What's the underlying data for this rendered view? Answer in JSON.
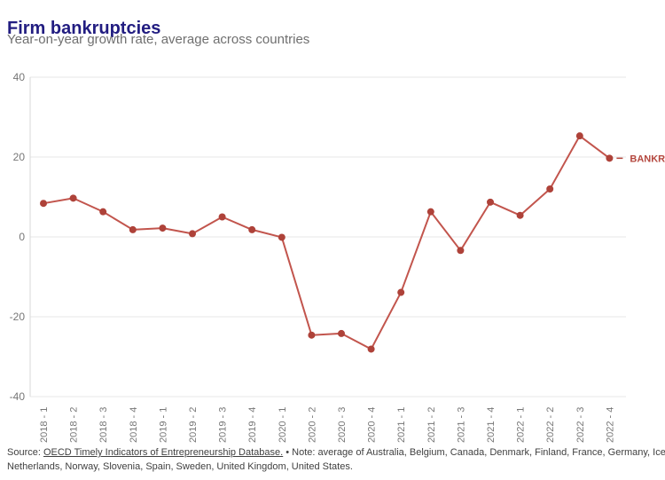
{
  "header": {
    "title": "Firm bankruptcies",
    "subtitle": "Year-on-year growth rate, average across countries"
  },
  "chart_data": {
    "type": "line",
    "title": "Firm bankruptcies",
    "subtitle": "Year-on-year growth rate, average across countries",
    "series_label": "BANKRUPTCIES",
    "categories": [
      "2018 - 1",
      "2018 - 2",
      "2018 - 3",
      "2018 - 4",
      "2019 - 1",
      "2019 - 2",
      "2019 - 3",
      "2019 - 4",
      "2020 - 1",
      "2020 - 2",
      "2020 - 3",
      "2020 - 4",
      "2021 - 1",
      "2021 - 2",
      "2021 - 3",
      "2021 - 4",
      "2022 - 1",
      "2022 - 2",
      "2022 - 3",
      "2022 - 4"
    ],
    "values": [
      8.4,
      9.7,
      6.3,
      1.8,
      2.2,
      0.8,
      5.0,
      1.8,
      -0.1,
      -24.6,
      -24.2,
      -28.1,
      -13.9,
      6.3,
      -3.4,
      8.7,
      5.4,
      12.0,
      25.3,
      19.7
    ],
    "y_ticks": [
      40,
      20,
      0,
      -20,
      -40
    ],
    "ylim": [
      -40,
      40
    ],
    "xlabel": "",
    "ylabel": "",
    "grid": true,
    "legend_position": "end-of-line"
  },
  "colors": {
    "title": "#221d81",
    "subtitle": "#6f6f6f",
    "line": "#c2554d",
    "point": "#ae4239",
    "grid": "#e7e7e7",
    "axis": "#d9d9d9",
    "tick_label": "#767676",
    "footer_text": "#3f3f3f",
    "series_label": "#b4473e"
  },
  "footer": {
    "source_prefix": "Source: ",
    "source_link": "OECD Timely Indicators of Entrepreneurship Database.",
    "note_line1": " • Note: average of Australia, Belgium, Canada, Denmark, Finland, France, Germany, Iceland,",
    "note_line2": "Netherlands, Norway, Slovenia, Spain, Sweden, United Kingdom, United States."
  }
}
